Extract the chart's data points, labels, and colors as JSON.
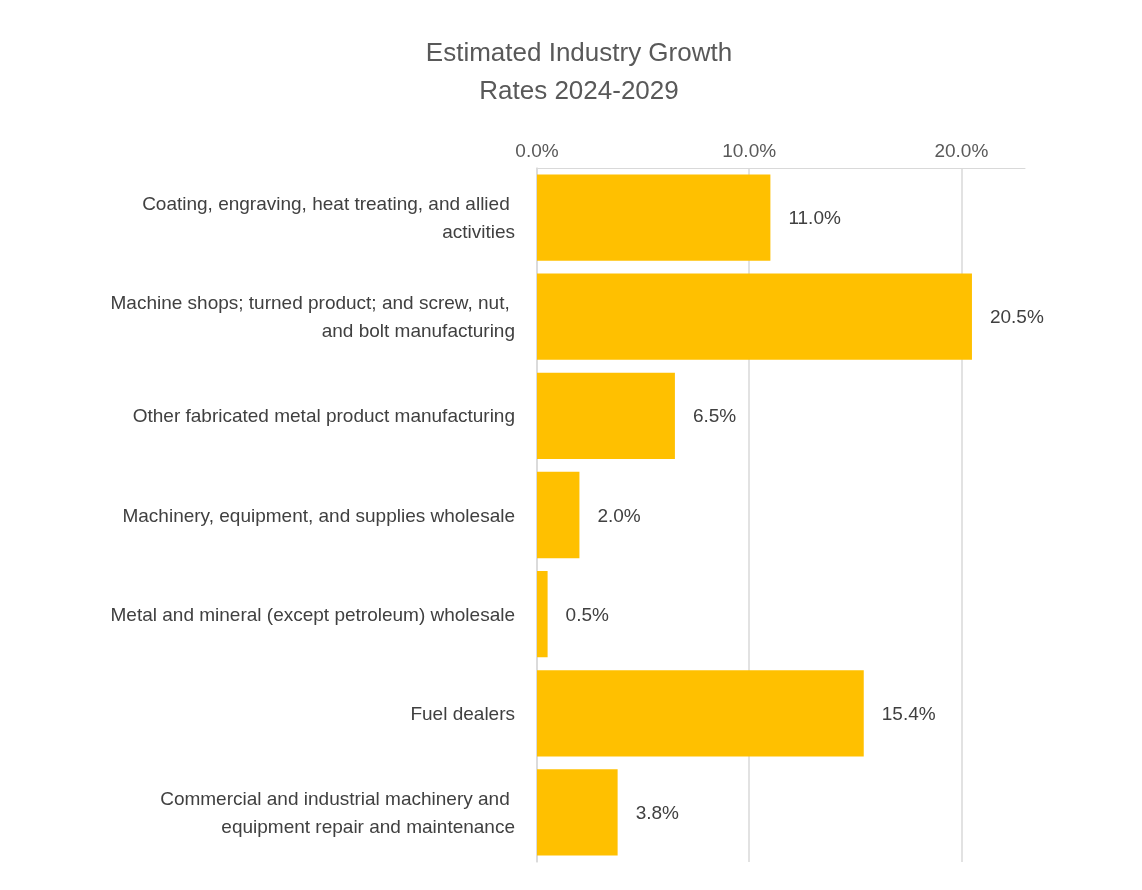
{
  "chart_data": {
    "type": "bar",
    "orientation": "horizontal",
    "title": "Estimated Industry Growth\nRates 2024-2029",
    "categories": [
      "Coating, engraving, heat treating, and allied activities",
      "Machine shops; turned product; and screw, nut, and bolt manufacturing",
      "Other fabricated metal product manufacturing",
      "Machinery, equipment, and supplies wholesale",
      "Metal and mineral (except petroleum) wholesale",
      "Fuel dealers",
      "Commercial and industrial machinery and equipment repair and maintenance"
    ],
    "values": [
      11.0,
      20.5,
      6.5,
      2.0,
      0.5,
      15.4,
      3.8
    ],
    "value_labels": [
      "11.0%",
      "20.5%",
      "6.5%",
      "2.0%",
      "0.5%",
      "15.4%",
      "3.8%"
    ],
    "color": "#ffc000",
    "xlim": [
      0,
      23
    ],
    "xticks": [
      {
        "value": 0,
        "label": "0.0%"
      },
      {
        "value": 10,
        "label": "10.0%"
      },
      {
        "value": 20,
        "label": "20.0%"
      }
    ],
    "grid": "x"
  }
}
